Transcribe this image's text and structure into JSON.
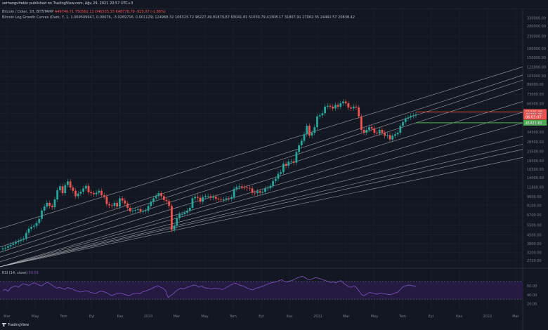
{
  "header": {
    "publisher_text": "serhangultekin published on TradingView.com, Ağu 29, 2021 20:57 UTC+3",
    "brand": "TradingView"
  },
  "legend": {
    "symbol": "Bitcoin / Dolar, 1H, BITSTAMP",
    "ohlc": "A49746.71  Y50562.11  D46535.33  K48778.79  -923.07 (-1.86%)",
    "indicator": "Bitcoin Log Growth Curves (Dark, Y, 1, 1.069509947, 0.00076, -3.0269716, 0.001129)",
    "indicator_values": "124968.32  106323.72  96227.49  81879.87  63041.81  51030.79  41308.17  31807.91  27062.35  24492.57  20838.42"
  },
  "rsi": {
    "label": "RSI (14, close)",
    "value": "59.01",
    "upper": 70,
    "lower": 30,
    "axis_ticks": [
      "60.00",
      "40.00",
      "20.00"
    ]
  },
  "colors": {
    "background": "#131722",
    "up": "#26a69a",
    "down": "#ef5350",
    "bands": "#c8cad1",
    "rsi_line": "#7e57c2",
    "rsi_band": "#2b1c4a",
    "green_line": "#4caf50",
    "red_line": "#ef5350"
  },
  "chart_data": {
    "type": "candlestick",
    "title": "Bitcoin / Dolar, 1H, BITSTAMP",
    "xlabel": "",
    "ylabel": "",
    "scale": "log",
    "ylim": [
      2400,
      420000
    ],
    "y_ticks": [
      330000,
      280000,
      230000,
      180000,
      150000,
      125000,
      105000,
      89000,
      73000,
      60500,
      50000,
      41000,
      34500,
      28500,
      23500,
      19500,
      16500,
      14000,
      11600,
      9600,
      8100,
      6700,
      5500,
      4500,
      3800,
      3200,
      2720
    ],
    "x_ticks": [
      "Mar",
      "May",
      "Tem",
      "Eyl",
      "Kas",
      "2020",
      "Mar",
      "May",
      "Tem",
      "Eyl",
      "Kas",
      "2021",
      "Mar",
      "May",
      "Tem",
      "Eyl",
      "Kas",
      "2022",
      "Mar"
    ],
    "x_range": [
      "2019-02",
      "2022-04"
    ],
    "price_labels": [
      {
        "value": "51295.98",
        "price": 51296,
        "color": "#ef5350"
      },
      {
        "value": "48778.79",
        "price": 48779,
        "color": "#ef5350"
      },
      {
        "value": "06:03:07",
        "price": 46535,
        "color": "#ef5350"
      },
      {
        "value": "41421.69",
        "price": 41422,
        "color": "#4caf50"
      }
    ],
    "bands": [
      {
        "start": 5100,
        "end": 124968
      },
      {
        "start": 3550,
        "end": 106324
      },
      {
        "start": 3200,
        "end": 96227
      },
      {
        "start": 2900,
        "end": 81880
      },
      {
        "start": 2650,
        "end": 63042
      },
      {
        "start": 2400,
        "end": 51031
      },
      {
        "start": 2400,
        "end": 41308
      },
      {
        "start": 2400,
        "end": 31808
      },
      {
        "start": 2400,
        "end": 27062
      },
      {
        "start": 2400,
        "end": 24493
      },
      {
        "start": 2400,
        "end": 20838
      }
    ],
    "candles_week": [
      3450,
      3500,
      3600,
      3700,
      3800,
      3900,
      4000,
      4100,
      4200,
      4700,
      5100,
      5300,
      5400,
      5700,
      6200,
      7300,
      7900,
      8500,
      8000,
      7800,
      9100,
      10900,
      11800,
      10300,
      12100,
      13000,
      11500,
      10800,
      9700,
      10200,
      10600,
      11300,
      11900,
      10500,
      10300,
      10100,
      10400,
      10800,
      9900,
      9600,
      8300,
      8100,
      8000,
      8500,
      7900,
      9300,
      8900,
      8400,
      7700,
      7200,
      7300,
      7400,
      7500,
      7200,
      7200,
      7300,
      8000,
      8700,
      9300,
      9700,
      10300,
      9700,
      9000,
      8800,
      8000,
      5000,
      5400,
      6300,
      6800,
      6800,
      7000,
      7300,
      7700,
      9300,
      9600,
      9400,
      8700,
      9500,
      9700,
      9700,
      9400,
      9600,
      9200,
      9100,
      9000,
      9100,
      9300,
      9200,
      9500,
      11200,
      11600,
      11800,
      11600,
      11500,
      11400,
      11300,
      10400,
      10300,
      10700,
      10400,
      10600,
      11300,
      11400,
      11900,
      13100,
      13700,
      15100,
      15600,
      18400,
      17700,
      19200,
      19300,
      18800,
      23200,
      26500,
      29000,
      33000,
      39000,
      32200,
      34000,
      38000,
      47000,
      48000,
      50000,
      57000,
      58000,
      57000,
      55000,
      59000,
      57000,
      61000,
      63000,
      61000,
      56000,
      55000,
      57000,
      56000,
      47000,
      36000,
      34000,
      36000,
      38000,
      37000,
      34000,
      33500,
      36000,
      34000,
      32000,
      32500,
      29800,
      32000,
      33000,
      34000,
      39000,
      42000,
      45000,
      46000,
      47500,
      48000,
      48779
    ],
    "rsi_values": [
      50,
      52,
      48,
      55,
      58,
      60,
      57,
      62,
      65,
      63,
      61,
      64,
      67,
      65,
      62,
      60,
      64,
      68,
      66,
      62,
      58,
      55,
      57,
      54,
      52,
      56,
      55,
      53,
      50,
      48,
      46,
      47,
      49,
      48,
      45,
      44,
      43,
      46,
      48,
      47,
      45,
      42,
      38,
      40,
      42,
      44,
      43,
      41,
      39,
      38,
      41,
      43,
      44,
      42,
      46,
      48,
      50,
      52,
      55,
      58,
      60,
      57,
      55,
      50,
      34,
      38,
      42,
      48,
      52,
      55,
      53,
      56,
      58,
      60,
      62,
      61,
      57,
      60,
      56,
      55,
      54,
      53,
      55,
      54,
      53,
      52,
      54,
      58,
      61,
      64,
      66,
      64,
      61,
      60,
      57,
      54,
      52,
      51,
      55,
      56,
      58,
      60,
      63,
      65,
      67,
      68,
      70,
      72,
      74,
      70,
      69,
      71,
      72,
      75,
      78,
      80,
      82,
      79,
      75,
      74,
      76,
      79,
      78,
      76,
      74,
      72,
      70,
      68,
      69,
      67,
      70,
      72,
      66,
      62,
      58,
      57,
      60,
      56,
      48,
      40,
      38,
      42,
      45,
      44,
      43,
      41,
      44,
      43,
      42,
      41,
      40,
      42,
      44,
      46,
      52,
      58,
      60,
      62,
      61,
      60,
      59
    ]
  }
}
